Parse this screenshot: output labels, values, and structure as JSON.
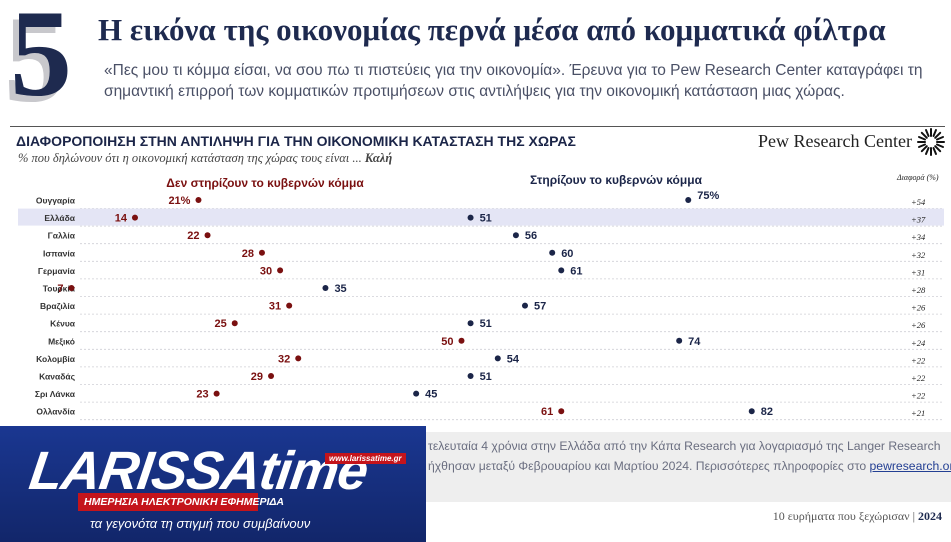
{
  "header": {
    "number": "5",
    "headline": "Η εικόνα της οικονομίας περνά μέσα από κομματικά φίλτρα",
    "lead": "«Πες μου τι κόμμα είσαι, να σου πω τι πιστεύεις για την οικονομία». Έρευνα για το Pew Research Center καταγράφει τη σημαντική επιρροή των κομματικών προτιμήσεων στις αντιλήψεις για την οικονομική κατάσταση μιας χώρας."
  },
  "chart_header": {
    "title": "ΔΙΑΦΟΡΟΠΟΙΗΣΗ ΣΤΗΝ ΑΝΤΙΛΗΨΗ ΓΙΑ ΤΗΝ ΟΙΚΟΝΟΜΙΚΗ ΚΑΤΑΣΤΑΣΗ ΤΗΣ ΧΩΡΑΣ",
    "subtitle": "% που δηλώνουν ότι η οικονομική κατάσταση της χώρας τους είναι ...",
    "subtitle_emphasis": "Καλή",
    "source_brand": "Pew Research Center",
    "diff_label": "Διαφορά (%)"
  },
  "chart_data": {
    "type": "dot",
    "categories": [
      "Ουγγαρία",
      "Ελλάδα",
      "Γαλλία",
      "Ισπανία",
      "Γερμανία",
      "Τουρκία",
      "Βραζιλία",
      "Κένυα",
      "Μεξικό",
      "Κολομβία",
      "Καναδάς",
      "Σρι Λάνκα",
      "Ολλανδία"
    ],
    "highlight": "Ελλάδα",
    "series": [
      {
        "name": "Δεν στηρίζουν το κυβερνών κόμμα",
        "color": "#7a1010",
        "values": [
          21,
          14,
          22,
          28,
          30,
          7,
          31,
          25,
          50,
          32,
          29,
          23,
          61
        ]
      },
      {
        "name": "Στηρίζουν το κυβερνών κόμμα",
        "color": "#1b2548",
        "values": [
          75,
          51,
          56,
          60,
          61,
          35,
          57,
          51,
          74,
          54,
          51,
          45,
          82
        ]
      }
    ],
    "first_value_suffix": "%",
    "diff": [
      "+54",
      "+37",
      "+34",
      "+32",
      "+31",
      "+28",
      "+26",
      "+26",
      "+24",
      "+22",
      "+22",
      "+22",
      "+21"
    ],
    "xlim": [
      0,
      100
    ],
    "grid": true
  },
  "footer": {
    "note_line1": "τελευταία 4 χρόνια στην Ελλάδα από την Κάπα Research για λογαριασμό της Langer Research",
    "note_line2": "ήχθησαν μεταξύ Φεβρουαρίου και Μαρτίου 2024. Περισσότερες πληροφορίες στο",
    "note_link": "pewresearch.org",
    "series_label": "10 ευρήματα που ξεχώρισαν |",
    "year": "2024"
  },
  "logo": {
    "name": "LARISSAtime",
    "url": "www.larissatime.gr",
    "tagline": "ΗΜΕΡΗΣΙΑ ΗΛΕΚΤΡΟΝΙΚΗ ΕΦΗΜΕΡΙΔΑ",
    "slogan": "τα γεγονότα τη στιγμή που συμβαίνουν"
  }
}
